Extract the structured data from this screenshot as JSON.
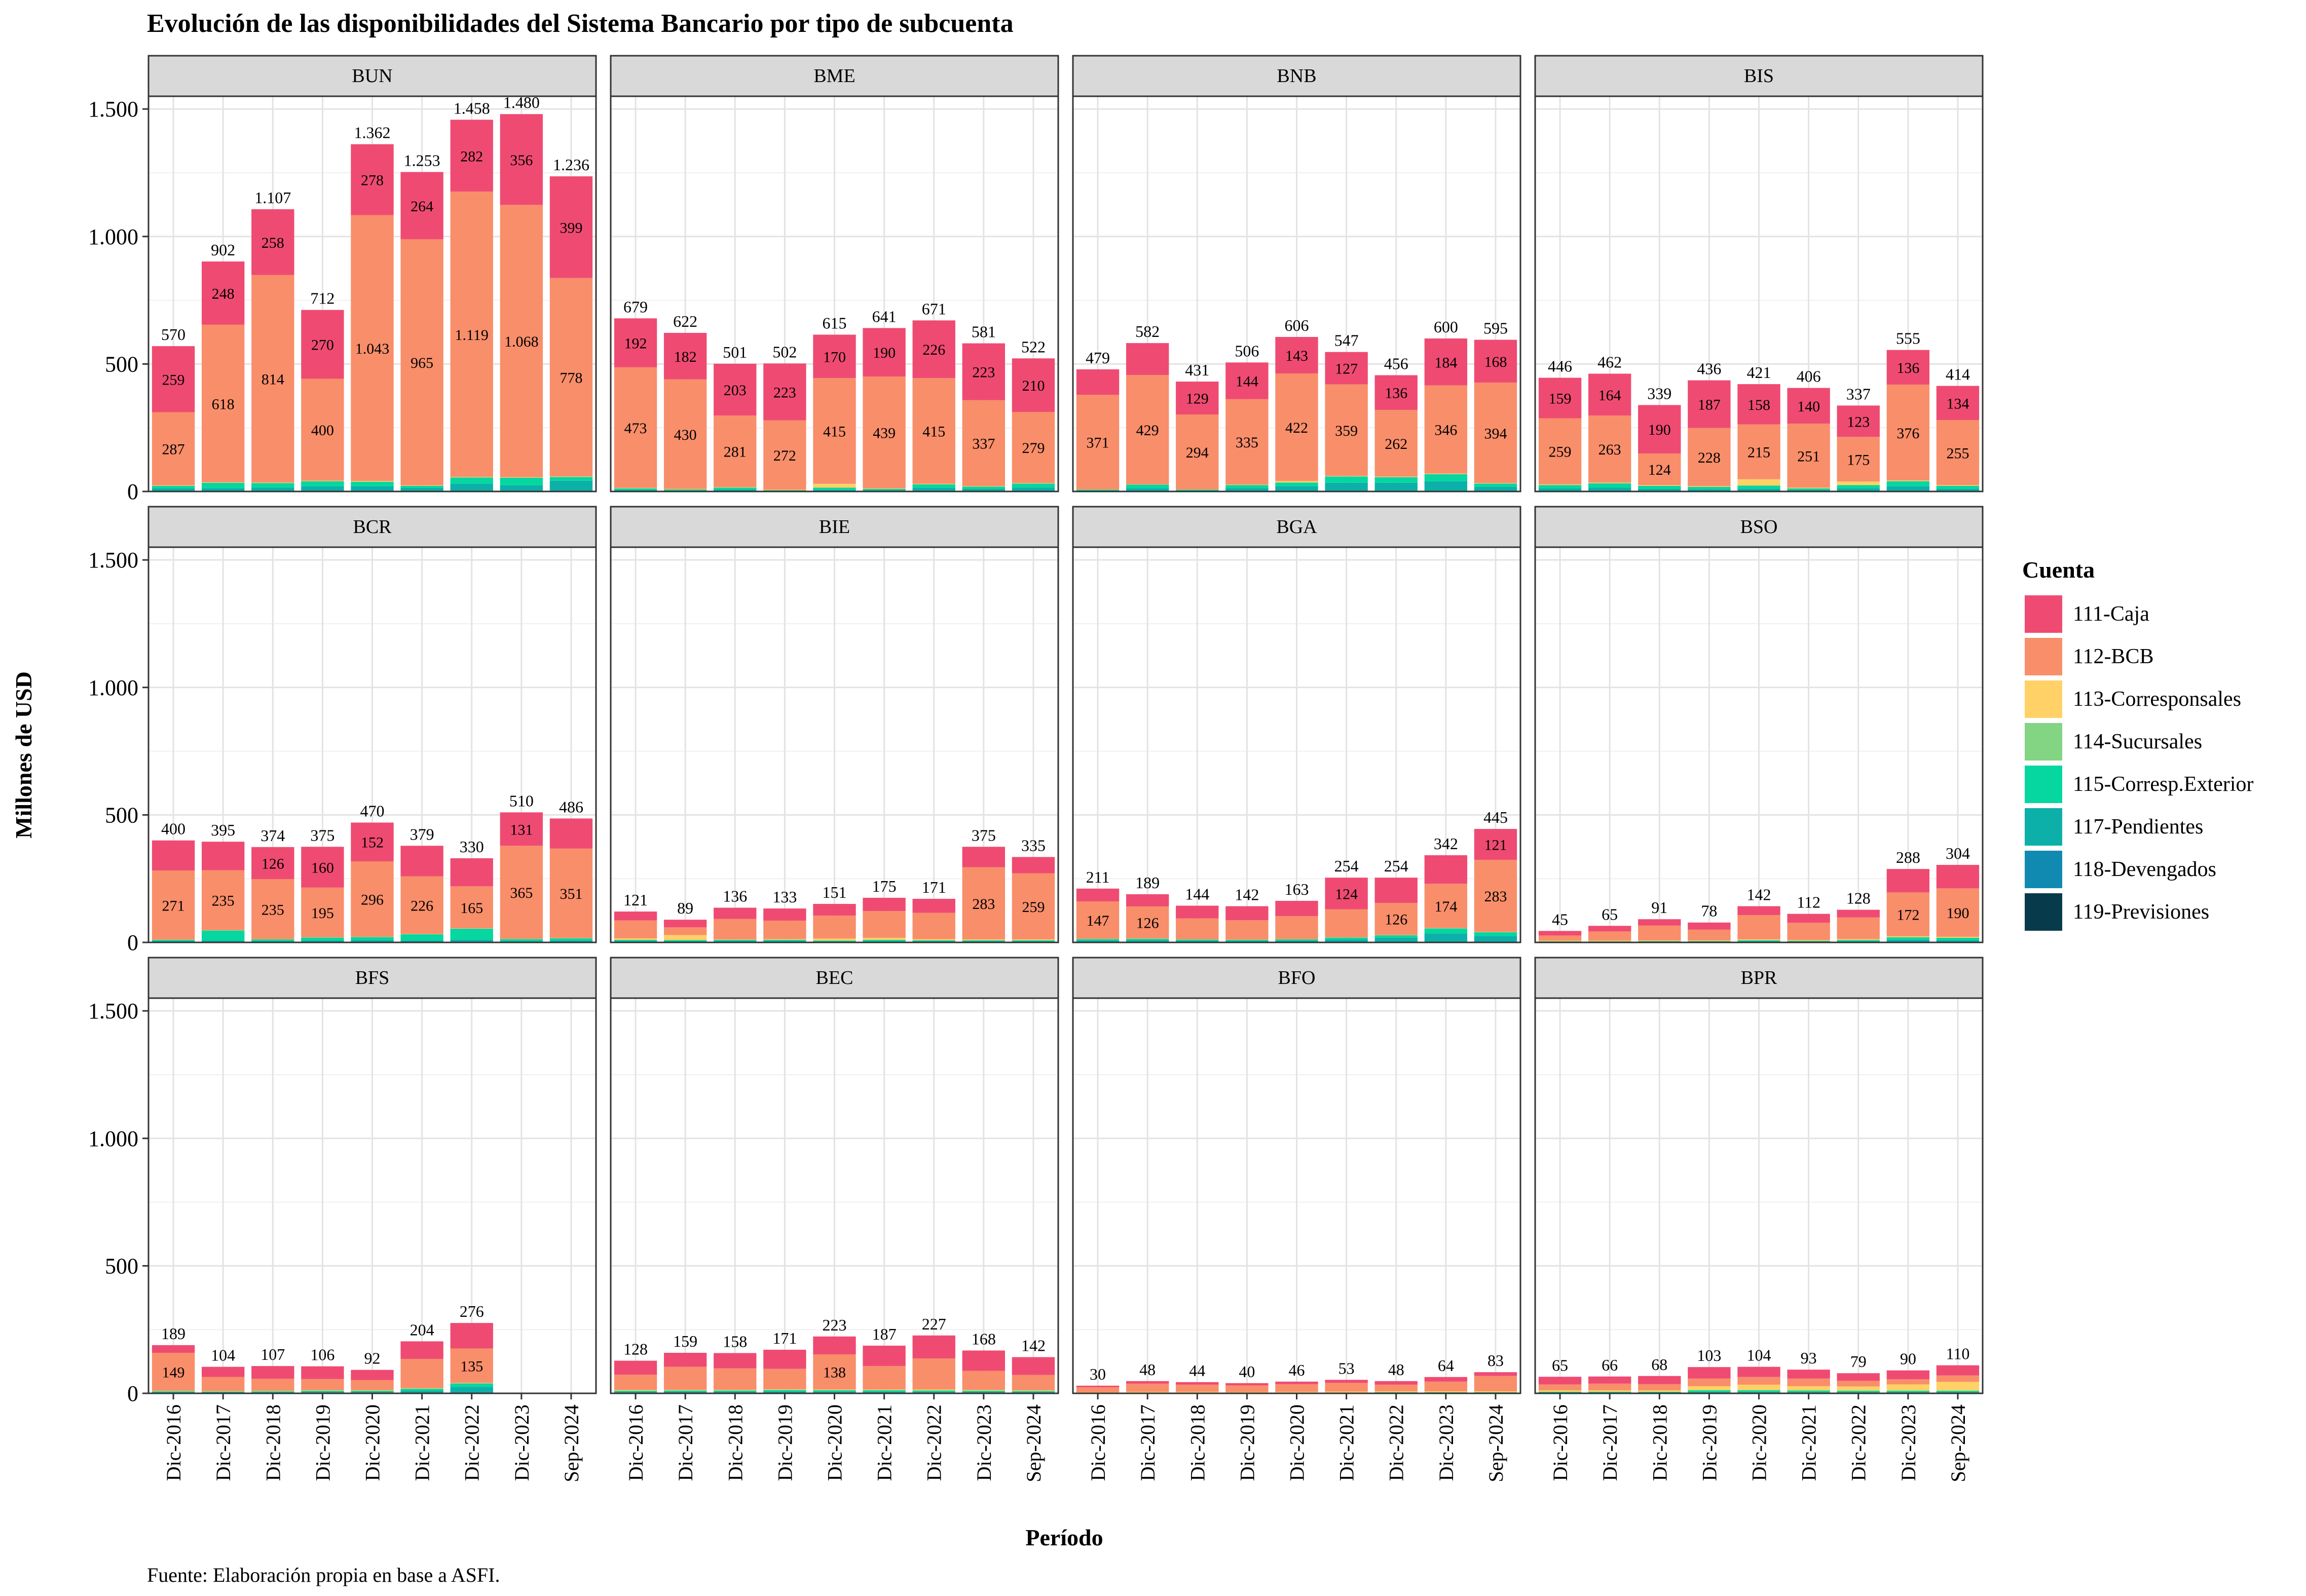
{
  "chart_data": {
    "type": "bar",
    "stacked": true,
    "title": "Evolución de las disponibilidades del Sistema Bancario por tipo de subcuenta",
    "xlabel": "Período",
    "ylabel": "Millones de USD",
    "caption": "Fuente: Elaboración propia en base a ASFI.",
    "ylim": [
      0,
      1550
    ],
    "yticks": [
      0,
      500,
      1000,
      1500
    ],
    "ytick_labels": [
      "0",
      "500",
      "1.000",
      "1.500"
    ],
    "grid": true,
    "legend_position": "right",
    "legend_title": "Cuenta",
    "categories": [
      "Dic-2016",
      "Dic-2017",
      "Dic-2018",
      "Dic-2019",
      "Dic-2020",
      "Dic-2021",
      "Dic-2022",
      "Dic-2023",
      "Sep-2024"
    ],
    "series_legend": [
      {
        "name": "111-Caja",
        "color": "#EF4B72"
      },
      {
        "name": "112-BCB",
        "color": "#F98E6A"
      },
      {
        "name": "113-Corresponsales",
        "color": "#FFD166"
      },
      {
        "name": "114-Sucursales",
        "color": "#83D483"
      },
      {
        "name": "115-Corresp.Exterior",
        "color": "#06D6A0"
      },
      {
        "name": "117-Pendientes",
        "color": "#0CB0A9"
      },
      {
        "name": "118-Devengados",
        "color": "#118AB2"
      },
      {
        "name": "119-Previsiones",
        "color": "#073B4C"
      }
    ],
    "panels": [
      {
        "name": "BUN",
        "totals": [
          570,
          902,
          1107,
          712,
          1362,
          1253,
          1458,
          1480,
          1236
        ],
        "total_labels": [
          "570",
          "902",
          "1.107",
          "712",
          "1.362",
          "1.253",
          "1.458",
          "1.480",
          "1.236"
        ],
        "caja": [
          259,
          248,
          258,
          270,
          278,
          264,
          282,
          356,
          399
        ],
        "bcb": [
          287,
          618,
          814,
          400,
          1043,
          965,
          1119,
          1068,
          778
        ],
        "bcb_labels": [
          "287",
          "618",
          "814",
          "400",
          "1.043",
          "965",
          "1.119",
          "1.068",
          "778"
        ],
        "corr": [
          2,
          2,
          2,
          2,
          3,
          2,
          2,
          2,
          2
        ],
        "ext": [
          10,
          22,
          18,
          20,
          18,
          8,
          25,
          30,
          15
        ],
        "pend": [
          12,
          12,
          15,
          20,
          20,
          14,
          30,
          24,
          42
        ],
        "show_caja": true,
        "show_bcb": true
      },
      {
        "name": "BME",
        "totals": [
          679,
          622,
          501,
          502,
          615,
          641,
          671,
          581,
          522
        ],
        "total_labels": [
          "679",
          "622",
          "501",
          "502",
          "615",
          "641",
          "671",
          "581",
          "522"
        ],
        "caja": [
          192,
          182,
          203,
          223,
          170,
          190,
          226,
          223,
          210
        ],
        "bcb": [
          473,
          430,
          281,
          272,
          415,
          439,
          415,
          337,
          279
        ],
        "bcb_labels": [
          "473",
          "430",
          "281",
          "272",
          "415",
          "439",
          "415",
          "337",
          "279"
        ],
        "corr": [
          2,
          2,
          2,
          2,
          15,
          2,
          2,
          2,
          2
        ],
        "ext": [
          6,
          5,
          8,
          2,
          10,
          5,
          14,
          9,
          16
        ],
        "pend": [
          6,
          3,
          7,
          3,
          5,
          5,
          14,
          10,
          15
        ],
        "show_caja": true,
        "show_bcb": true
      },
      {
        "name": "BNB",
        "totals": [
          479,
          582,
          431,
          506,
          606,
          547,
          456,
          600,
          595
        ],
        "total_labels": [
          "479",
          "582",
          "431",
          "506",
          "606",
          "547",
          "456",
          "600",
          "595"
        ],
        "caja": [
          100,
          125,
          129,
          144,
          143,
          127,
          136,
          184,
          168
        ],
        "bcb": [
          371,
          429,
          294,
          335,
          422,
          359,
          262,
          346,
          394
        ],
        "bcb_labels": [
          "371",
          "429",
          "294",
          "335",
          "422",
          "359",
          "262",
          "346",
          "394"
        ],
        "corr": [
          1,
          1,
          1,
          2,
          6,
          2,
          2,
          2,
          2
        ],
        "ext": [
          3,
          15,
          3,
          12,
          15,
          25,
          22,
          28,
          13
        ],
        "pend": [
          4,
          12,
          4,
          13,
          20,
          34,
          34,
          40,
          18
        ],
        "show_caja": [
          false,
          false,
          true,
          true,
          true,
          true,
          true,
          true,
          true
        ],
        "show_bcb": true
      },
      {
        "name": "BIS",
        "totals": [
          446,
          462,
          339,
          436,
          421,
          406,
          337,
          555,
          414
        ],
        "total_labels": [
          "446",
          "462",
          "339",
          "436",
          "421",
          "406",
          "337",
          "555",
          "414"
        ],
        "caja": [
          159,
          164,
          190,
          187,
          158,
          140,
          123,
          136,
          134
        ],
        "bcb": [
          259,
          263,
          124,
          228,
          215,
          251,
          175,
          376,
          255
        ],
        "bcb_labels": [
          "259",
          "263",
          "124",
          "228",
          "215",
          "251",
          "175",
          "376",
          "255"
        ],
        "corr": [
          3,
          3,
          3,
          3,
          25,
          3,
          14,
          3,
          3
        ],
        "ext": [
          13,
          17,
          12,
          10,
          13,
          6,
          13,
          20,
          12
        ],
        "pend": [
          12,
          15,
          10,
          8,
          10,
          6,
          12,
          20,
          10
        ],
        "show_caja": true,
        "show_bcb": true
      },
      {
        "name": "BCR",
        "totals": [
          400,
          395,
          374,
          375,
          470,
          379,
          330,
          510,
          486
        ],
        "total_labels": [
          "400",
          "395",
          "374",
          "375",
          "470",
          "379",
          "330",
          "510",
          "486"
        ],
        "caja": [
          118,
          112,
          126,
          160,
          152,
          120,
          110,
          131,
          118
        ],
        "bcb": [
          271,
          235,
          235,
          195,
          296,
          226,
          165,
          365,
          351
        ],
        "bcb_labels": [
          "271",
          "235",
          "235",
          "195",
          "296",
          "226",
          "165",
          "365",
          "351"
        ],
        "corr": [
          1,
          1,
          1,
          1,
          1,
          1,
          1,
          1,
          1
        ],
        "ext": [
          5,
          40,
          7,
          12,
          12,
          25,
          44,
          8,
          9
        ],
        "pend": [
          5,
          7,
          5,
          7,
          9,
          7,
          10,
          5,
          7
        ],
        "show_caja": [
          false,
          false,
          true,
          true,
          true,
          false,
          false,
          true,
          false
        ],
        "show_bcb": true
      },
      {
        "name": "BIE",
        "totals": [
          121,
          89,
          136,
          133,
          151,
          175,
          171,
          375,
          335
        ],
        "total_labels": [
          "121",
          "89",
          "136",
          "133",
          "151",
          "175",
          "171",
          "375",
          "335"
        ],
        "caja": [
          35,
          30,
          44,
          48,
          46,
          52,
          55,
          80,
          64
        ],
        "bcb": [
          70,
          30,
          80,
          72,
          90,
          105,
          103,
          283,
          259
        ],
        "bcb_labels": [
          "70",
          "30",
          "80",
          "72",
          "90",
          "105",
          "103",
          "283",
          "259"
        ],
        "corr": [
          6,
          20,
          2,
          3,
          8,
          8,
          5,
          4,
          4
        ],
        "ext": [
          5,
          5,
          5,
          5,
          4,
          6,
          4,
          4,
          4
        ],
        "pend": [
          5,
          4,
          5,
          5,
          3,
          4,
          4,
          4,
          4
        ],
        "show_caja": false,
        "show_bcb": [
          false,
          false,
          false,
          false,
          false,
          false,
          false,
          true,
          true
        ]
      },
      {
        "name": "BGA",
        "totals": [
          211,
          189,
          144,
          142,
          163,
          254,
          254,
          342,
          445
        ],
        "total_labels": [
          "211",
          "189",
          "144",
          "142",
          "163",
          "254",
          "254",
          "342",
          "445"
        ],
        "caja": [
          50,
          48,
          50,
          55,
          60,
          124,
          99,
          112,
          121
        ],
        "bcb": [
          147,
          126,
          82,
          76,
          90,
          110,
          126,
          174,
          283
        ],
        "bcb_labels": [
          "147",
          "126",
          "82",
          "76",
          "90",
          "110",
          "126",
          "174",
          "283"
        ],
        "corr": [
          1,
          1,
          1,
          1,
          1,
          1,
          1,
          1,
          1
        ],
        "ext": [
          6,
          6,
          5,
          5,
          6,
          8,
          10,
          20,
          15
        ],
        "pend": [
          7,
          8,
          6,
          5,
          6,
          11,
          18,
          35,
          25
        ],
        "show_caja": [
          false,
          false,
          false,
          false,
          false,
          true,
          false,
          false,
          true
        ],
        "show_bcb": [
          true,
          true,
          false,
          false,
          false,
          false,
          true,
          true,
          true
        ]
      },
      {
        "name": "BSO",
        "totals": [
          45,
          65,
          91,
          78,
          142,
          112,
          128,
          288,
          304
        ],
        "total_labels": [
          "45",
          "65",
          "91",
          "78",
          "142",
          "112",
          "128",
          "288",
          "304"
        ],
        "caja": [
          18,
          22,
          25,
          28,
          35,
          35,
          30,
          92,
          92
        ],
        "bcb": [
          20,
          36,
          58,
          42,
          95,
          68,
          85,
          172,
          190
        ],
        "bcb_labels": [
          "20",
          "36",
          "58",
          "42",
          "95",
          "68",
          "85",
          "172",
          "190"
        ],
        "corr": [
          3,
          3,
          3,
          3,
          4,
          3,
          4,
          4,
          4
        ],
        "ext": [
          2,
          2,
          3,
          3,
          4,
          3,
          5,
          10,
          10
        ],
        "pend": [
          2,
          2,
          2,
          2,
          4,
          3,
          4,
          10,
          8
        ],
        "show_caja": false,
        "show_bcb": [
          false,
          false,
          false,
          false,
          false,
          false,
          false,
          true,
          true
        ]
      },
      {
        "name": "BFS",
        "totals": [
          189,
          104,
          107,
          106,
          92,
          204,
          276,
          null,
          null
        ],
        "total_labels": [
          "189",
          "104",
          "107",
          "106",
          "92",
          "204",
          "276",
          "",
          ""
        ],
        "caja": [
          30,
          40,
          50,
          50,
          40,
          69,
          100,
          0,
          0
        ],
        "bcb": [
          149,
          55,
          47,
          44,
          40,
          115,
          135,
          0,
          0
        ],
        "bcb_labels": [
          "149",
          "55",
          "47",
          "44",
          "40",
          "115",
          "135",
          "",
          ""
        ],
        "corr": [
          2,
          2,
          2,
          2,
          2,
          2,
          2,
          0,
          0
        ],
        "ext": [
          4,
          3,
          4,
          5,
          5,
          8,
          14,
          0,
          0
        ],
        "pend": [
          4,
          4,
          4,
          5,
          5,
          10,
          25,
          0,
          0
        ],
        "show_caja": false,
        "show_bcb": [
          true,
          false,
          false,
          false,
          false,
          false,
          true,
          false,
          false
        ]
      },
      {
        "name": "BEC",
        "totals": [
          128,
          159,
          158,
          171,
          223,
          187,
          227,
          168,
          142
        ],
        "total_labels": [
          "128",
          "159",
          "158",
          "171",
          "223",
          "187",
          "227",
          "168",
          "142"
        ],
        "caja": [
          55,
          55,
          60,
          75,
          70,
          80,
          90,
          80,
          70
        ],
        "bcb": [
          60,
          90,
          84,
          80,
          138,
          92,
          122,
          75,
          60
        ],
        "bcb_labels": [
          "60",
          "90",
          "84",
          "80",
          "138",
          "92",
          "122",
          "75",
          "60"
        ],
        "corr": [
          3,
          3,
          3,
          3,
          3,
          3,
          4,
          3,
          3
        ],
        "ext": [
          5,
          5,
          5,
          6,
          6,
          6,
          6,
          5,
          5
        ],
        "pend": [
          5,
          6,
          6,
          7,
          6,
          6,
          5,
          5,
          4
        ],
        "show_caja": false,
        "show_bcb": [
          false,
          false,
          false,
          false,
          true,
          false,
          false,
          false,
          false
        ]
      },
      {
        "name": "BFO",
        "totals": [
          30,
          48,
          44,
          40,
          46,
          53,
          48,
          64,
          83
        ],
        "total_labels": [
          "30",
          "48",
          "44",
          "40",
          "46",
          "53",
          "48",
          "64",
          "83"
        ],
        "caja": [
          6,
          10,
          10,
          9,
          10,
          12,
          14,
          18,
          15
        ],
        "bcb": [
          20,
          32,
          28,
          26,
          30,
          34,
          26,
          38,
          60
        ],
        "bcb_labels": [
          "20",
          "32",
          "28",
          "26",
          "30",
          "34",
          "26",
          "38",
          "60"
        ],
        "corr": [
          2,
          3,
          3,
          3,
          3,
          4,
          4,
          4,
          4
        ],
        "ext": [
          1,
          2,
          2,
          1,
          2,
          2,
          2,
          2,
          2
        ],
        "pend": [
          1,
          1,
          1,
          1,
          1,
          1,
          2,
          2,
          2
        ],
        "show_caja": false,
        "show_bcb": false
      },
      {
        "name": "BPR",
        "totals": [
          65,
          66,
          68,
          103,
          104,
          93,
          79,
          90,
          110
        ],
        "total_labels": [
          "65",
          "66",
          "68",
          "103",
          "104",
          "93",
          "79",
          "90",
          "110"
        ],
        "caja": [
          30,
          28,
          32,
          45,
          40,
          35,
          30,
          35,
          40
        ],
        "bcb": [
          23,
          26,
          24,
          30,
          30,
          30,
          22,
          20,
          25
        ],
        "bcb_labels": [
          "23",
          "26",
          "24",
          "30",
          "30",
          "30",
          "22",
          "20",
          "25"
        ],
        "corr": [
          6,
          6,
          6,
          16,
          22,
          17,
          17,
          25,
          35
        ],
        "ext": [
          4,
          4,
          4,
          8,
          8,
          7,
          6,
          6,
          6
        ],
        "pend": [
          2,
          2,
          2,
          4,
          4,
          4,
          4,
          4,
          4
        ],
        "show_caja": false,
        "show_bcb": false
      }
    ]
  }
}
